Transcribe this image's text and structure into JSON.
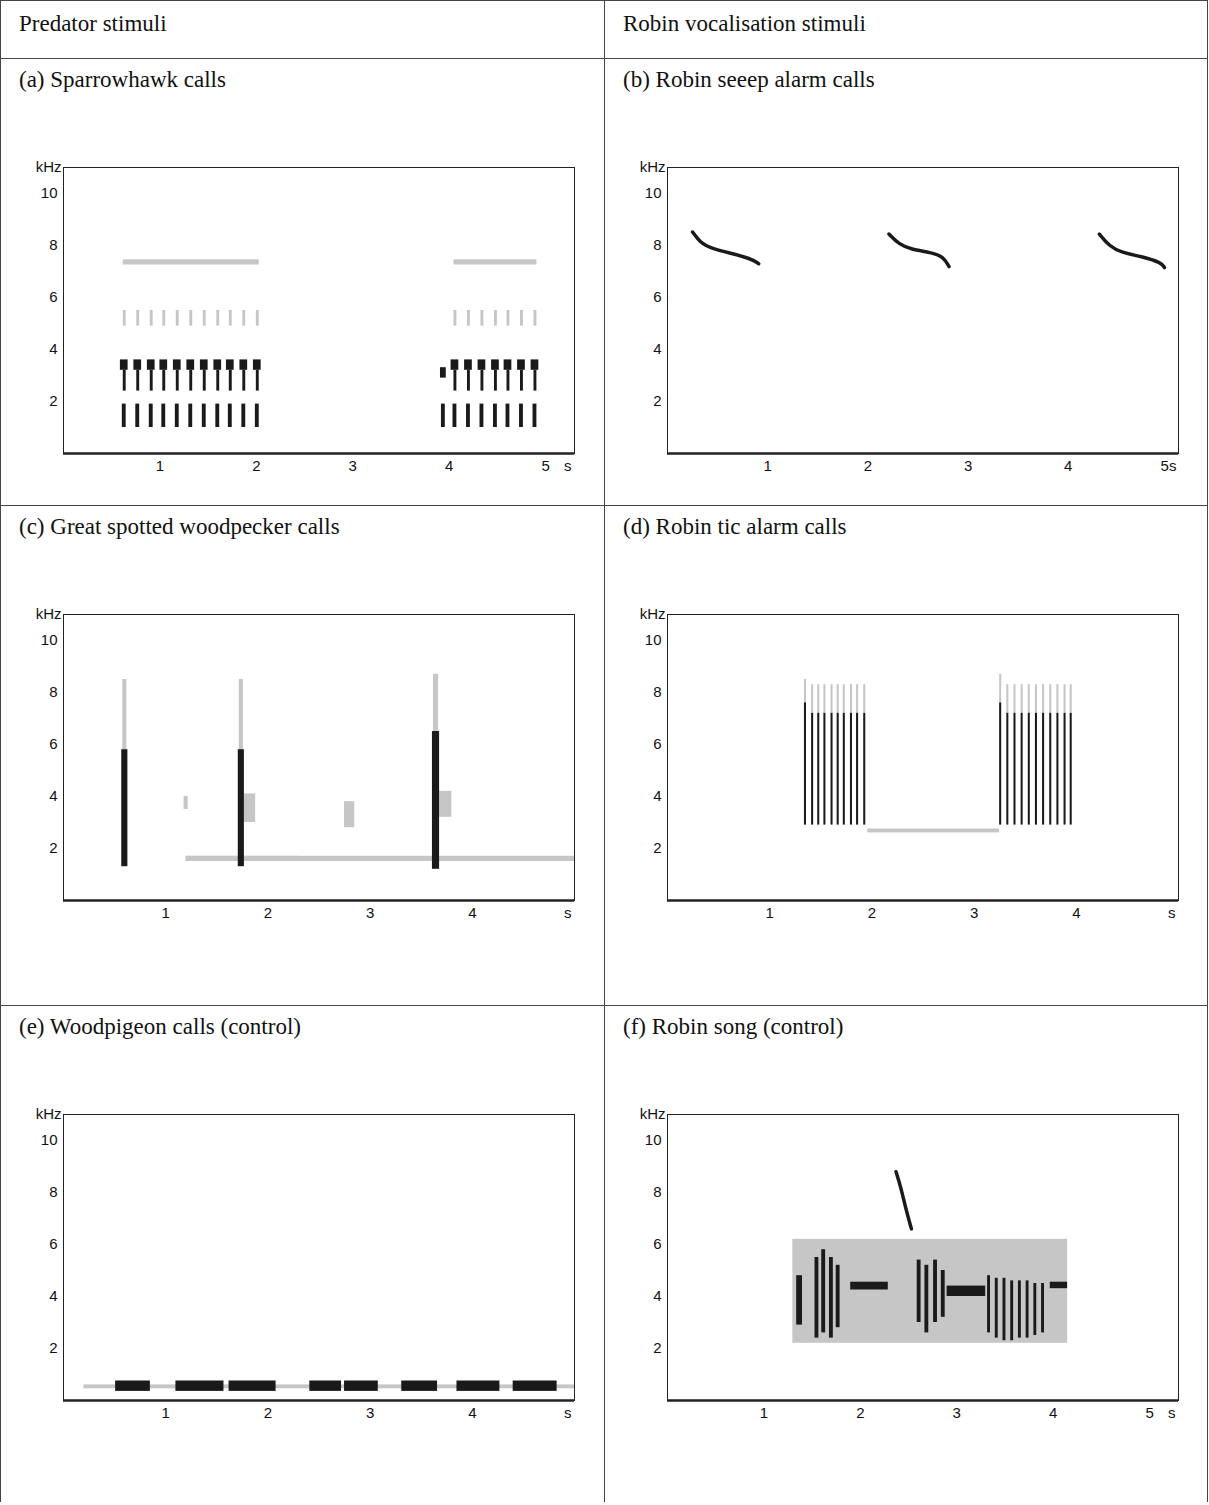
{
  "headers": [
    "Predator stimuli",
    "Robin vocalisation stimuli"
  ],
  "chart_data": [
    {
      "type": "spectrogram",
      "title": "(a) Sparrowhawk calls",
      "ylabel": "kHz",
      "xlabel": "s",
      "color": "#1a1a1a",
      "xlim": [
        0,
        5.3
      ],
      "ylim": [
        0,
        11
      ],
      "xticks": [
        1,
        2,
        3,
        4,
        5
      ],
      "yticks": [
        2,
        4,
        6,
        8,
        10
      ],
      "elements": [
        [
          0.59,
          0.67,
          3.2,
          3.6
        ],
        [
          0.62,
          0.65,
          2.4,
          3.2
        ],
        [
          0.61,
          0.65,
          1.0,
          1.9
        ],
        [
          0.73,
          0.81,
          3.2,
          3.6
        ],
        [
          0.76,
          0.79,
          2.4,
          3.2
        ],
        [
          0.75,
          0.79,
          1.0,
          1.9
        ],
        [
          0.87,
          0.95,
          3.2,
          3.6
        ],
        [
          0.9,
          0.93,
          2.4,
          3.2
        ],
        [
          0.89,
          0.93,
          1.0,
          1.9
        ],
        [
          1.0,
          1.08,
          3.2,
          3.6
        ],
        [
          1.03,
          1.06,
          2.4,
          3.2
        ],
        [
          1.02,
          1.06,
          1.0,
          1.9
        ],
        [
          1.14,
          1.22,
          3.2,
          3.6
        ],
        [
          1.17,
          1.2,
          2.4,
          3.2
        ],
        [
          1.16,
          1.2,
          1.0,
          1.9
        ],
        [
          1.28,
          1.36,
          3.2,
          3.6
        ],
        [
          1.31,
          1.34,
          2.4,
          3.2
        ],
        [
          1.3,
          1.34,
          1.0,
          1.9
        ],
        [
          1.42,
          1.5,
          3.2,
          3.6
        ],
        [
          1.45,
          1.48,
          2.4,
          3.2
        ],
        [
          1.44,
          1.48,
          1.0,
          1.9
        ],
        [
          1.56,
          1.64,
          3.2,
          3.6
        ],
        [
          1.59,
          1.62,
          2.4,
          3.2
        ],
        [
          1.58,
          1.62,
          1.0,
          1.9
        ],
        [
          1.69,
          1.77,
          3.2,
          3.6
        ],
        [
          1.72,
          1.75,
          2.4,
          3.2
        ],
        [
          1.71,
          1.75,
          1.0,
          1.9
        ],
        [
          1.83,
          1.91,
          3.2,
          3.6
        ],
        [
          1.86,
          1.89,
          2.4,
          3.2
        ],
        [
          1.85,
          1.89,
          1.0,
          1.9
        ],
        [
          1.97,
          2.05,
          3.2,
          3.6
        ],
        [
          2.0,
          2.03,
          2.4,
          3.2
        ],
        [
          1.99,
          2.03,
          1.0,
          1.9
        ],
        [
          3.91,
          3.97,
          2.9,
          3.3
        ],
        [
          3.92,
          3.96,
          1.0,
          1.9
        ],
        [
          4.02,
          4.1,
          3.2,
          3.6
        ],
        [
          4.05,
          4.08,
          2.4,
          3.2
        ],
        [
          4.04,
          4.08,
          1.0,
          1.9
        ],
        [
          4.16,
          4.24,
          3.2,
          3.6
        ],
        [
          4.19,
          4.22,
          2.4,
          3.2
        ],
        [
          4.18,
          4.22,
          1.0,
          1.9
        ],
        [
          4.3,
          4.38,
          3.2,
          3.6
        ],
        [
          4.33,
          4.36,
          2.4,
          3.2
        ],
        [
          4.32,
          4.36,
          1.0,
          1.9
        ],
        [
          4.44,
          4.52,
          3.2,
          3.6
        ],
        [
          4.47,
          4.5,
          2.4,
          3.2
        ],
        [
          4.46,
          4.5,
          1.0,
          1.9
        ],
        [
          4.57,
          4.65,
          3.2,
          3.6
        ],
        [
          4.6,
          4.63,
          2.4,
          3.2
        ],
        [
          4.59,
          4.63,
          1.0,
          1.9
        ],
        [
          4.71,
          4.79,
          3.2,
          3.6
        ],
        [
          4.74,
          4.77,
          2.4,
          3.2
        ],
        [
          4.73,
          4.77,
          1.0,
          1.9
        ],
        [
          4.85,
          4.93,
          3.2,
          3.6
        ],
        [
          4.88,
          4.91,
          2.4,
          3.2
        ],
        [
          4.87,
          4.91,
          1.0,
          1.9
        ]
      ],
      "faint_elements": [
        [
          0.62,
          0.65,
          4.9,
          5.5
        ],
        [
          0.76,
          0.79,
          4.9,
          5.5
        ],
        [
          0.9,
          0.93,
          4.9,
          5.5
        ],
        [
          1.03,
          1.06,
          4.9,
          5.5
        ],
        [
          1.17,
          1.2,
          4.9,
          5.5
        ],
        [
          1.31,
          1.34,
          4.9,
          5.5
        ],
        [
          1.45,
          1.48,
          4.9,
          5.5
        ],
        [
          1.59,
          1.62,
          4.9,
          5.5
        ],
        [
          1.72,
          1.75,
          4.9,
          5.5
        ],
        [
          1.86,
          1.89,
          4.9,
          5.5
        ],
        [
          2.0,
          2.03,
          4.9,
          5.5
        ],
        [
          4.05,
          4.08,
          4.9,
          5.5
        ],
        [
          4.19,
          4.22,
          4.9,
          5.5
        ],
        [
          4.33,
          4.36,
          4.9,
          5.5
        ],
        [
          4.47,
          4.5,
          4.9,
          5.5
        ],
        [
          4.6,
          4.63,
          4.9,
          5.5
        ],
        [
          4.74,
          4.77,
          4.9,
          5.5
        ],
        [
          4.88,
          4.91,
          4.9,
          5.5
        ],
        [
          0.62,
          2.03,
          7.25,
          7.45
        ],
        [
          4.05,
          4.91,
          7.25,
          7.45
        ]
      ],
      "lines": []
    },
    {
      "type": "spectrogram",
      "title": "(b) Robin seeep alarm calls",
      "ylabel": "kHz",
      "color": "#1a1a1a",
      "xlim": [
        0,
        5.1
      ],
      "ylim": [
        0,
        11
      ],
      "xticks": [
        1,
        2,
        3,
        4,
        {
          "value": 5,
          "label": "5s"
        }
      ],
      "yticks": [
        2,
        4,
        6,
        8,
        10
      ],
      "elements": [],
      "faint_elements": [],
      "lines": [
        [
          [
            0.25,
            8.52
          ],
          [
            0.33,
            8.1
          ],
          [
            0.43,
            7.9
          ],
          [
            0.63,
            7.7
          ],
          [
            0.83,
            7.5
          ],
          [
            0.91,
            7.3
          ]
        ],
        [
          [
            2.21,
            8.44
          ],
          [
            2.31,
            8.05
          ],
          [
            2.43,
            7.85
          ],
          [
            2.63,
            7.73
          ],
          [
            2.75,
            7.58
          ],
          [
            2.81,
            7.19
          ]
        ],
        [
          [
            4.31,
            8.44
          ],
          [
            4.41,
            7.97
          ],
          [
            4.53,
            7.73
          ],
          [
            4.73,
            7.58
          ],
          [
            4.93,
            7.34
          ],
          [
            4.96,
            7.15
          ]
        ]
      ]
    },
    {
      "type": "spectrogram",
      "title": "(c) Great spotted woodpecker calls",
      "ylabel": "kHz",
      "xlabel": "s",
      "color": "#1a1a1a",
      "xlim": [
        0,
        5
      ],
      "ylim": [
        0,
        11
      ],
      "xticks": [
        1,
        2,
        3,
        4
      ],
      "yticks": [
        2,
        4,
        6,
        8,
        10
      ],
      "elements": [
        [
          0.57,
          0.63,
          1.3,
          5.8
        ],
        [
          1.71,
          1.77,
          1.3,
          5.8
        ],
        [
          3.61,
          3.68,
          1.2,
          6.5
        ]
      ],
      "faint_elements": [
        [
          0.58,
          0.62,
          5.8,
          8.5
        ],
        [
          1.72,
          1.76,
          5.8,
          8.5
        ],
        [
          3.62,
          3.67,
          6.5,
          8.7
        ],
        [
          1.77,
          1.88,
          3.0,
          4.1
        ],
        [
          3.68,
          3.8,
          3.2,
          4.2
        ],
        [
          2.75,
          2.85,
          2.8,
          3.8
        ],
        [
          1.18,
          1.22,
          3.5,
          4.0
        ],
        [
          1.2,
          5.0,
          1.5,
          1.7
        ],
        [
          1.2,
          2.3,
          1.5,
          1.7
        ]
      ],
      "lines": []
    },
    {
      "type": "spectrogram",
      "title": "(d) Robin tic alarm calls",
      "ylabel": "kHz",
      "xlabel": "s",
      "color": "#1a1a1a",
      "xlim": [
        0,
        5
      ],
      "ylim": [
        0,
        11
      ],
      "xticks": [
        1,
        2,
        3,
        4
      ],
      "yticks": [
        2,
        4,
        6,
        8,
        10
      ],
      "elements": [
        [
          1.34,
          1.36,
          2.9,
          7.6
        ],
        [
          1.41,
          1.43,
          2.9,
          7.2
        ],
        [
          1.47,
          1.49,
          2.9,
          7.2
        ],
        [
          1.53,
          1.55,
          2.9,
          7.2
        ],
        [
          1.6,
          1.62,
          2.9,
          7.2
        ],
        [
          1.66,
          1.68,
          2.9,
          7.2
        ],
        [
          1.72,
          1.74,
          2.9,
          7.2
        ],
        [
          1.79,
          1.81,
          2.9,
          7.2
        ],
        [
          1.85,
          1.87,
          2.9,
          7.2
        ],
        [
          1.92,
          1.94,
          2.9,
          7.2
        ],
        [
          3.25,
          3.27,
          2.9,
          7.6
        ],
        [
          3.32,
          3.34,
          2.9,
          7.2
        ],
        [
          3.39,
          3.41,
          2.9,
          7.2
        ],
        [
          3.46,
          3.48,
          2.9,
          7.2
        ],
        [
          3.53,
          3.55,
          2.9,
          7.2
        ],
        [
          3.6,
          3.62,
          2.9,
          7.2
        ],
        [
          3.67,
          3.69,
          2.9,
          7.2
        ],
        [
          3.74,
          3.76,
          2.9,
          7.2
        ],
        [
          3.81,
          3.83,
          2.9,
          7.2
        ],
        [
          3.88,
          3.9,
          2.9,
          7.2
        ],
        [
          3.94,
          3.96,
          2.9,
          7.2
        ]
      ],
      "faint_elements": [
        [
          1.34,
          1.36,
          7.6,
          8.5
        ],
        [
          1.41,
          1.43,
          7.2,
          8.3
        ],
        [
          1.47,
          1.49,
          7.2,
          8.3
        ],
        [
          1.53,
          1.55,
          7.2,
          8.3
        ],
        [
          1.6,
          1.62,
          7.2,
          8.3
        ],
        [
          1.66,
          1.68,
          7.2,
          8.3
        ],
        [
          1.72,
          1.74,
          7.2,
          8.3
        ],
        [
          1.79,
          1.81,
          7.2,
          8.3
        ],
        [
          1.85,
          1.87,
          7.2,
          8.3
        ],
        [
          1.92,
          1.94,
          7.2,
          8.3
        ],
        [
          3.25,
          3.27,
          7.6,
          8.7
        ],
        [
          3.32,
          3.34,
          7.2,
          8.3
        ],
        [
          3.39,
          3.41,
          7.2,
          8.3
        ],
        [
          3.46,
          3.48,
          7.2,
          8.3
        ],
        [
          3.53,
          3.55,
          7.2,
          8.3
        ],
        [
          3.6,
          3.62,
          7.2,
          8.3
        ],
        [
          3.67,
          3.69,
          7.2,
          8.3
        ],
        [
          3.74,
          3.76,
          7.2,
          8.3
        ],
        [
          3.81,
          3.83,
          7.2,
          8.3
        ],
        [
          3.88,
          3.9,
          7.2,
          8.3
        ],
        [
          3.94,
          3.96,
          7.2,
          8.3
        ],
        [
          1.96,
          3.25,
          2.6,
          2.75
        ]
      ],
      "lines": []
    },
    {
      "type": "spectrogram",
      "title": "(e) Woodpigeon calls (control)",
      "ylabel": "kHz",
      "xlabel": "s",
      "color": "#1a1a1a",
      "xlim": [
        0,
        5
      ],
      "ylim": [
        0,
        11
      ],
      "xticks": [
        1,
        2,
        3,
        4
      ],
      "yticks": [
        2,
        4,
        6,
        8,
        10
      ],
      "elements": [
        [
          0.51,
          0.85,
          0.35,
          0.75
        ],
        [
          1.1,
          1.57,
          0.35,
          0.75
        ],
        [
          1.62,
          2.08,
          0.35,
          0.75
        ],
        [
          2.41,
          2.72,
          0.35,
          0.75
        ],
        [
          2.75,
          3.08,
          0.35,
          0.75
        ],
        [
          3.31,
          3.66,
          0.35,
          0.75
        ],
        [
          3.85,
          4.27,
          0.35,
          0.75
        ],
        [
          4.4,
          4.83,
          0.35,
          0.75
        ]
      ],
      "faint_elements": [
        [
          0.2,
          5.0,
          0.45,
          0.6
        ]
      ],
      "lines": []
    },
    {
      "type": "spectrogram",
      "title": "(f) Robin song (control)",
      "ylabel": "kHz",
      "xlabel": "s",
      "color": "#1a1a1a",
      "xlim": [
        0,
        5.3
      ],
      "ylim": [
        0,
        11
      ],
      "xticks": [
        1,
        2,
        3,
        4,
        5
      ],
      "yticks": [
        2,
        4,
        6,
        8,
        10
      ],
      "elements": [
        [
          1.34,
          1.4,
          2.9,
          4.8
        ],
        [
          1.53,
          1.57,
          2.4,
          5.5
        ],
        [
          1.6,
          1.64,
          2.6,
          5.8
        ],
        [
          1.68,
          1.72,
          2.4,
          5.5
        ],
        [
          1.75,
          1.79,
          2.8,
          5.2
        ],
        [
          1.9,
          2.29,
          4.25,
          4.55
        ],
        [
          2.59,
          2.63,
          3.0,
          5.4
        ],
        [
          2.67,
          2.71,
          2.6,
          5.2
        ],
        [
          2.76,
          2.8,
          3.0,
          5.4
        ],
        [
          2.84,
          2.88,
          3.2,
          5.0
        ],
        [
          2.9,
          3.3,
          4.0,
          4.4
        ],
        [
          3.32,
          3.35,
          2.6,
          4.8
        ],
        [
          3.4,
          3.43,
          2.4,
          4.7
        ],
        [
          3.48,
          3.51,
          2.3,
          4.7
        ],
        [
          3.56,
          3.59,
          2.3,
          4.6
        ],
        [
          3.64,
          3.67,
          2.4,
          4.6
        ],
        [
          3.72,
          3.75,
          2.4,
          4.6
        ],
        [
          3.8,
          3.83,
          2.5,
          4.5
        ],
        [
          3.88,
          3.91,
          2.6,
          4.5
        ],
        [
          3.97,
          4.15,
          4.3,
          4.55
        ]
      ],
      "faint_elements": [
        [
          1.3,
          4.15,
          2.2,
          6.2
        ]
      ],
      "lines": [
        [
          [
            2.37,
            8.8
          ],
          [
            2.42,
            8.2
          ],
          [
            2.47,
            7.4
          ],
          [
            2.53,
            6.6
          ]
        ]
      ]
    }
  ]
}
